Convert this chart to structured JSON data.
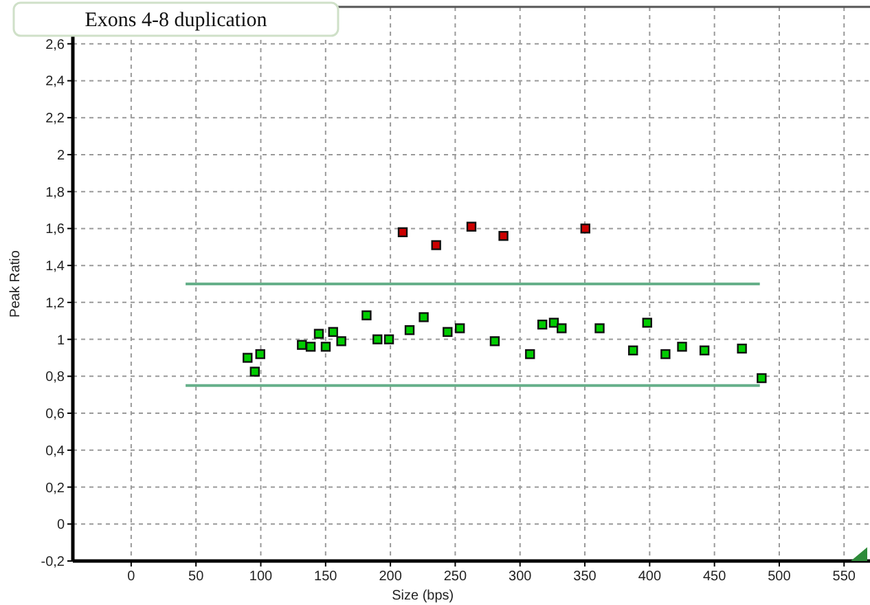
{
  "chart_data": {
    "type": "scatter",
    "xlabel": "Size (bps)",
    "ylabel": "Peak Ratio",
    "annotations": [
      "Exons 4-8 duplication"
    ],
    "xlim": [
      -45,
      570
    ],
    "ylim": [
      -0.2,
      2.8
    ],
    "xticks": [
      0,
      50,
      100,
      150,
      200,
      250,
      300,
      350,
      400,
      450,
      500,
      550
    ],
    "yticks": [
      {
        "value": -0.2,
        "label": "-0,2"
      },
      0,
      {
        "value": 0.2,
        "label": "0,2"
      },
      {
        "value": 0.4,
        "label": "0,4"
      },
      {
        "value": 0.6,
        "label": "0,6"
      },
      {
        "value": 0.8,
        "label": "0,8"
      },
      1,
      {
        "value": 1.2,
        "label": "1,2"
      },
      {
        "value": 1.4,
        "label": "1,4"
      },
      {
        "value": 1.6,
        "label": "1,6"
      },
      {
        "value": 1.8,
        "label": "1,8"
      },
      2,
      {
        "value": 2.2,
        "label": "2,2"
      },
      {
        "value": 2.4,
        "label": "2,4"
      },
      {
        "value": 2.6,
        "label": "2,6"
      }
    ],
    "grid": true,
    "series": [
      {
        "type": "scatter",
        "marker": "square",
        "color": "#00cc00",
        "x": [
          89.8,
          95.4,
          99.6,
          131.7,
          138.5,
          144.8,
          150.1,
          155.8,
          162.1,
          181.6,
          190,
          198.9,
          214.8,
          225.7,
          244.1,
          253.6,
          280.5,
          307.7,
          317.2,
          326.1,
          332.1,
          361.4,
          387.2,
          398.1,
          412.2,
          425,
          442.3,
          471.2,
          486.4
        ],
        "values": [
          0.9,
          0.825,
          0.92,
          0.97,
          0.96,
          1.03,
          0.96,
          1.04,
          0.99,
          1.13,
          1.0,
          1.0,
          1.05,
          1.12,
          1.04,
          1.06,
          0.99,
          0.92,
          1.08,
          1.09,
          1.06,
          1.06,
          0.94,
          1.09,
          0.92,
          0.96,
          0.94,
          0.95,
          0.79
        ]
      },
      {
        "type": "scatter",
        "marker": "square",
        "color": "#cc0000",
        "x": [
          209.5,
          235.3,
          262.5,
          287.2,
          350.4
        ],
        "values": [
          1.58,
          1.51,
          1.61,
          1.56,
          1.6
        ]
      },
      {
        "type": "line",
        "marker": "none",
        "line_style": "solid",
        "color": "#66b08a",
        "x": [
          42,
          485
        ],
        "values": [
          1.3,
          1.3
        ]
      },
      {
        "type": "line",
        "marker": "none",
        "line_style": "solid",
        "color": "#66b08a",
        "x": [
          42,
          485
        ],
        "values": [
          0.75,
          0.75
        ]
      }
    ]
  }
}
